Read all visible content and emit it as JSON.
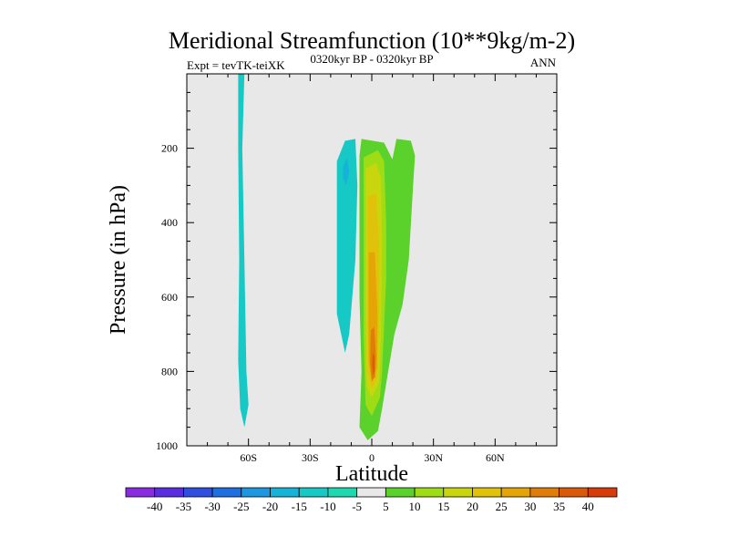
{
  "chart_data": {
    "type": "contour",
    "title": "Meridional Streamfunction (10**9kg/m-2)",
    "subtitle_left": "Expt = tevTK-teiXK",
    "subtitle_center": "0320kyr BP - 0320kyr BP",
    "subtitle_right": "ANN",
    "xlabel": "Latitude",
    "ylabel": "Pressure (in hPa)",
    "xlim": [
      -90,
      90
    ],
    "ylim": [
      1000,
      0
    ],
    "x_ticks": [
      {
        "value": -60,
        "label": "60S"
      },
      {
        "value": -30,
        "label": "30S"
      },
      {
        "value": 0,
        "label": "0"
      },
      {
        "value": 30,
        "label": "30N"
      },
      {
        "value": 60,
        "label": "60N"
      }
    ],
    "y_ticks": [
      {
        "value": 200,
        "label": "200"
      },
      {
        "value": 400,
        "label": "400"
      },
      {
        "value": 600,
        "label": "600"
      },
      {
        "value": 800,
        "label": "800"
      },
      {
        "value": 1000,
        "label": "1000"
      }
    ],
    "colorbar": {
      "levels": [
        "-40",
        "-35",
        "-30",
        "-25",
        "-20",
        "-15",
        "-10",
        "-5",
        "5",
        "10",
        "15",
        "20",
        "25",
        "30",
        "35",
        "40"
      ],
      "colors": [
        "#8a2be2",
        "#5a2ee0",
        "#2f4fe0",
        "#1e6fe0",
        "#1d98e0",
        "#16b3d8",
        "#17c9c5",
        "#1ed8b0",
        "#e8e8e8",
        "#5bd12c",
        "#9edc16",
        "#c9d60e",
        "#e1c20a",
        "#e5a506",
        "#e07d08",
        "#db5a0a",
        "#d83a0a"
      ]
    },
    "regions": [
      {
        "name": "southern-high-latitude-cell",
        "level": "-5 to -10",
        "color": "#17c9c5",
        "points": [
          [
            -65,
            0
          ],
          [
            -62,
            0
          ],
          [
            -63,
            200
          ],
          [
            -62,
            500
          ],
          [
            -61,
            800
          ],
          [
            -60,
            890
          ],
          [
            -62,
            950
          ],
          [
            -64,
            900
          ],
          [
            -65,
            770
          ],
          [
            -64.5,
            500
          ],
          [
            -65,
            200
          ]
        ]
      },
      {
        "name": "southern-tropical-cell",
        "level": "-5 to -10",
        "color": "#17c9c5",
        "points": [
          [
            -17,
            235
          ],
          [
            -13,
            180
          ],
          [
            -8,
            175
          ],
          [
            -7,
            300
          ],
          [
            -8,
            500
          ],
          [
            -11,
            700
          ],
          [
            -13,
            750
          ],
          [
            -17,
            645
          ],
          [
            -17,
            400
          ]
        ]
      },
      {
        "name": "southern-tropical-core",
        "level": "-10 to -15",
        "color": "#16b3d8",
        "points": [
          [
            -14,
            250
          ],
          [
            -12,
            225
          ],
          [
            -11,
            265
          ],
          [
            -12.5,
            300
          ],
          [
            -14,
            280
          ]
        ]
      },
      {
        "name": "northern-hadley-green-outer",
        "level": "5 to 10",
        "color": "#5bd12c",
        "points": [
          [
            -5,
            175
          ],
          [
            6,
            185
          ],
          [
            10,
            230
          ],
          [
            12,
            175
          ],
          [
            19,
            180
          ],
          [
            21,
            220
          ],
          [
            20,
            310
          ],
          [
            18,
            500
          ],
          [
            15,
            620
          ],
          [
            11,
            700
          ],
          [
            8,
            800
          ],
          [
            5,
            900
          ],
          [
            3,
            960
          ],
          [
            -2,
            985
          ],
          [
            -6,
            950
          ],
          [
            -5,
            800
          ],
          [
            -6,
            600
          ],
          [
            -6,
            400
          ],
          [
            -6,
            220
          ]
        ]
      },
      {
        "name": "northern-hadley-yellow-green",
        "level": "10 to 15",
        "color": "#9edc16",
        "points": [
          [
            -4,
            225
          ],
          [
            3,
            205
          ],
          [
            6,
            235
          ],
          [
            7,
            400
          ],
          [
            7,
            550
          ],
          [
            5,
            800
          ],
          [
            4,
            870
          ],
          [
            0,
            920
          ],
          [
            -3,
            890
          ],
          [
            -4,
            700
          ],
          [
            -4,
            400
          ]
        ]
      },
      {
        "name": "northern-hadley-yellow",
        "level": "15 to 20",
        "color": "#c9d60e",
        "points": [
          [
            -3,
            255
          ],
          [
            2,
            240
          ],
          [
            4.5,
            280
          ],
          [
            5,
            450
          ],
          [
            4.5,
            700
          ],
          [
            3.5,
            830
          ],
          [
            0,
            870
          ],
          [
            -2.5,
            840
          ],
          [
            -3,
            650
          ],
          [
            -3,
            400
          ]
        ]
      },
      {
        "name": "northern-hadley-gold",
        "level": "20 to 25",
        "color": "#e1c20a",
        "points": [
          [
            -2,
            330
          ],
          [
            2,
            320
          ],
          [
            3.5,
            450
          ],
          [
            3.5,
            700
          ],
          [
            2.8,
            815
          ],
          [
            0,
            845
          ],
          [
            -2,
            800
          ],
          [
            -2,
            550
          ]
        ]
      },
      {
        "name": "northern-hadley-orange",
        "level": "25 to 30",
        "color": "#e5a506",
        "points": [
          [
            -1.5,
            480
          ],
          [
            1.5,
            480
          ],
          [
            2.8,
            650
          ],
          [
            2.5,
            790
          ],
          [
            0,
            830
          ],
          [
            -1.5,
            770
          ],
          [
            -1.6,
            620
          ]
        ]
      },
      {
        "name": "northern-hadley-deep-orange",
        "level": "30 to 35",
        "color": "#e07d08",
        "points": [
          [
            -0.5,
            690
          ],
          [
            1.2,
            680
          ],
          [
            2,
            760
          ],
          [
            1.6,
            815
          ],
          [
            0,
            825
          ],
          [
            -0.8,
            780
          ]
        ]
      },
      {
        "name": "northern-hadley-core",
        "level": "35 to 40",
        "color": "#db5a0a",
        "points": [
          [
            0.5,
            750
          ],
          [
            1.3,
            760
          ],
          [
            1.2,
            800
          ],
          [
            0.6,
            810
          ],
          [
            0.2,
            780
          ]
        ]
      }
    ]
  }
}
